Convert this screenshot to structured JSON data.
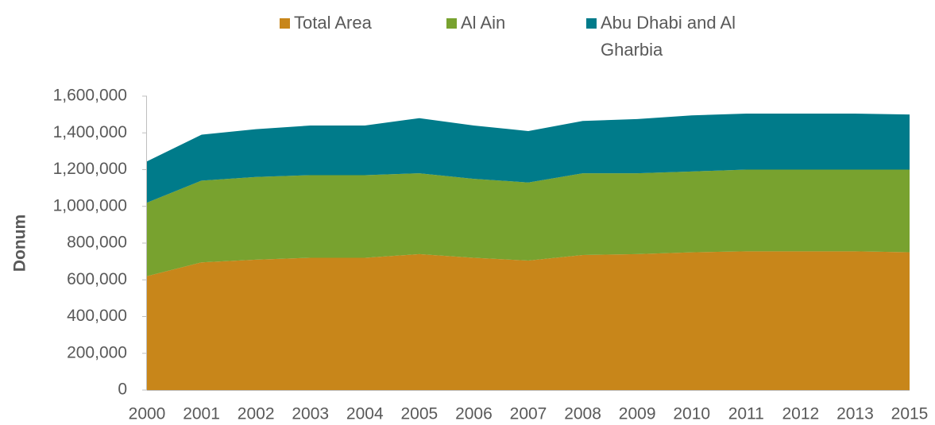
{
  "chart_data": {
    "type": "stacked_area",
    "y_label": "Donum",
    "categories": [
      "2000",
      "2001",
      "2002",
      "2003",
      "2004",
      "2005",
      "2006",
      "2007",
      "2008",
      "2009",
      "2010",
      "2011",
      "2012",
      "2013",
      "2015"
    ],
    "series": [
      {
        "name": "Total Area",
        "color": "#c8861a",
        "values": [
          620000,
          695000,
          710000,
          720000,
          720000,
          740000,
          720000,
          705000,
          735000,
          740000,
          750000,
          755000,
          755000,
          755000,
          750000
        ]
      },
      {
        "name": "Al Ain",
        "color": "#78a22f",
        "values": [
          400000,
          445000,
          450000,
          450000,
          450000,
          440000,
          430000,
          425000,
          445000,
          440000,
          440000,
          445000,
          445000,
          445000,
          450000
        ]
      },
      {
        "name": "Abu Dhabi and Al Gharbia",
        "color": "#007b8a",
        "values": [
          225000,
          250000,
          260000,
          270000,
          270000,
          300000,
          290000,
          280000,
          285000,
          295000,
          305000,
          305000,
          305000,
          305000,
          300000
        ]
      }
    ],
    "ylim": [
      0,
      1600000
    ],
    "yticks": [
      0,
      {
        "value": 200000,
        "label": "200,000"
      },
      {
        "value": 400000,
        "label": "400,000"
      },
      {
        "value": 600000,
        "label": "600,000"
      },
      {
        "value": 800000,
        "label": "800,000"
      },
      {
        "value": 1000000,
        "label": "1,000,000"
      },
      {
        "value": 1200000,
        "label": "1,200,000"
      },
      {
        "value": 1400000,
        "label": "1,400,000"
      },
      {
        "value": 1600000,
        "label": "1,600,000"
      }
    ]
  }
}
